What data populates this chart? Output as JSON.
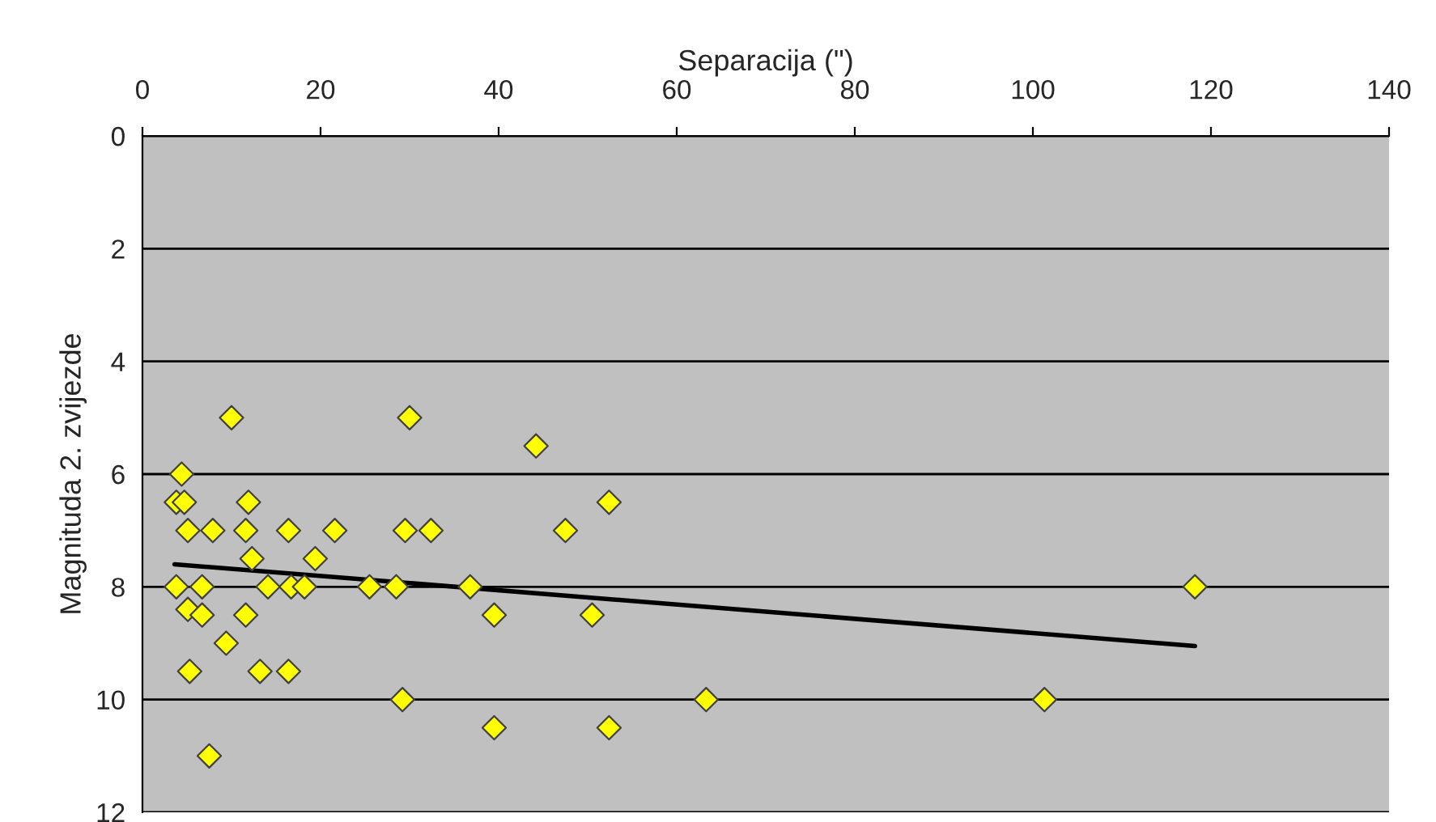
{
  "chart_data": {
    "type": "scatter",
    "xlabel": "Separacija (\")",
    "ylabel": "Magnituda 2. zvijezde",
    "xlim": [
      0,
      140
    ],
    "xticks": [
      0,
      20,
      40,
      60,
      80,
      100,
      120,
      140
    ],
    "ylim": [
      12,
      0
    ],
    "yticks": [
      0,
      2,
      4,
      6,
      8,
      10,
      12
    ],
    "grid": "y",
    "legend": false,
    "series": [
      {
        "color": "#ffff00",
        "marker": "diamond",
        "x": [
          10,
          30,
          44.2,
          4.4,
          3.8,
          4.7,
          11.9,
          5.1,
          7.9,
          11.6,
          16.4,
          21.6,
          29.5,
          32.4,
          12.3,
          19.4,
          3.8,
          6.7,
          14.1,
          16.7,
          18.2,
          25.5,
          28.5,
          36.8,
          5.1,
          6.7,
          11.6,
          39.5,
          9.4,
          5.3,
          13.2,
          16.4,
          29.2,
          39.5,
          7.5,
          52.4,
          47.5,
          50.5,
          63.3,
          52.4,
          101.3,
          118.2
        ],
        "values": [
          5,
          5,
          5.5,
          6,
          6.5,
          6.5,
          6.5,
          7,
          7,
          7,
          7,
          7,
          7,
          7,
          7.5,
          7.5,
          8,
          8,
          8,
          8,
          8,
          8,
          8,
          8,
          8.4,
          8.5,
          8.5,
          8.5,
          9,
          9.5,
          9.5,
          9.5,
          10,
          10.5,
          11,
          6.5,
          7,
          8.5,
          10,
          10.5,
          10,
          8
        ]
      },
      {
        "type": "line",
        "marker": "none",
        "color": "#000000",
        "x": [
          3.6,
          118.2
        ],
        "values": [
          7.6,
          9.05
        ]
      }
    ]
  }
}
